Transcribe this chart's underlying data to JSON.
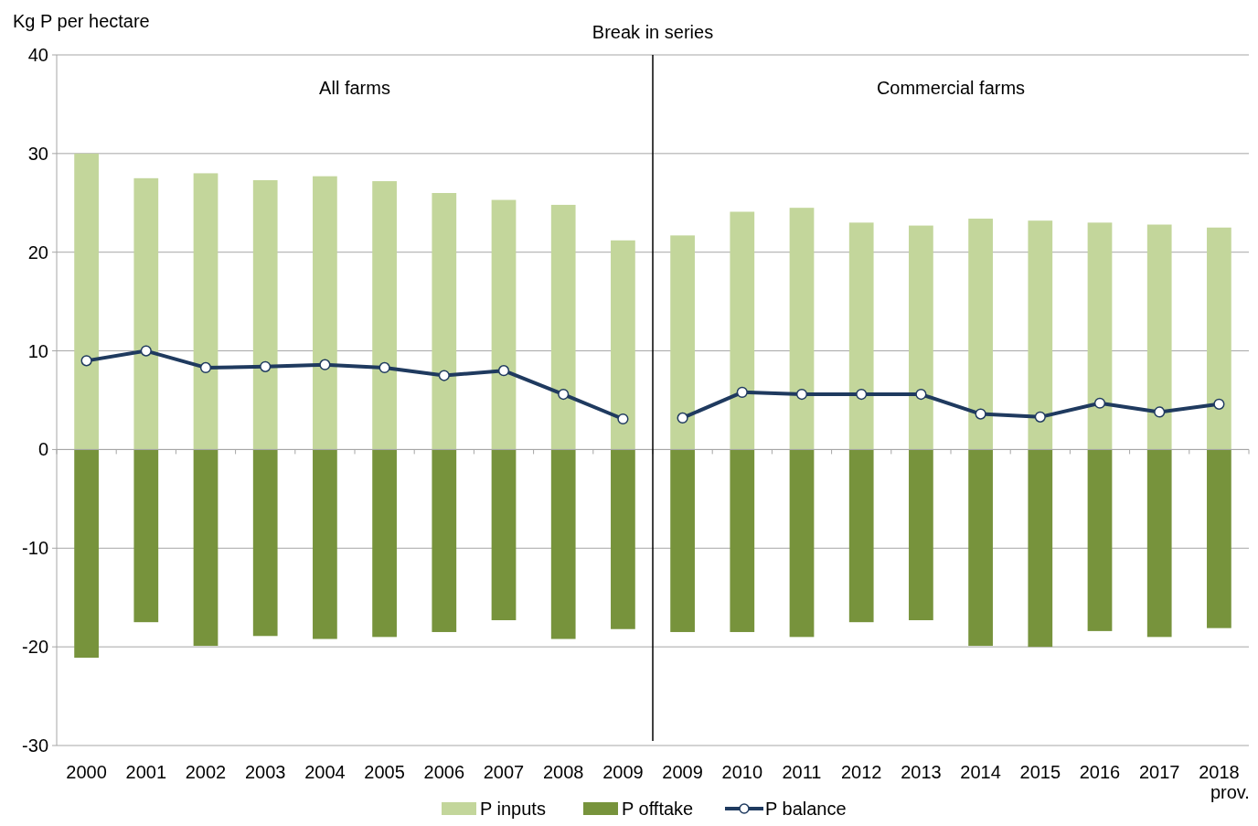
{
  "chart_data": {
    "type": "bar",
    "ylabel": "Kg P per hectare",
    "categories": [
      "2000",
      "2001",
      "2002",
      "2003",
      "2004",
      "2005",
      "2006",
      "2007",
      "2008",
      "2009",
      "2009",
      "2010",
      "2011",
      "2012",
      "2013",
      "2014",
      "2015",
      "2016",
      "2017",
      "2018\nprov."
    ],
    "series": [
      {
        "name": "P inputs",
        "color": "#c3d69b",
        "values": [
          30.0,
          27.5,
          28.0,
          27.3,
          27.7,
          27.2,
          26.0,
          25.3,
          24.8,
          21.2,
          21.7,
          24.1,
          24.5,
          23.0,
          22.7,
          23.4,
          23.2,
          23.0,
          22.8,
          22.5
        ]
      },
      {
        "name": "P offtake",
        "color": "#77933c",
        "values": [
          -21.1,
          -17.5,
          -19.9,
          -18.9,
          -19.2,
          -19.0,
          -18.5,
          -17.3,
          -19.2,
          -18.2,
          -18.5,
          -18.5,
          -19.0,
          -17.5,
          -17.3,
          -19.9,
          -20.0,
          -18.4,
          -19.0,
          -18.1
        ]
      },
      {
        "name": "P balance",
        "type": "line",
        "color": "#1f3a5f",
        "marker": "circle",
        "values": [
          9.0,
          10.0,
          8.3,
          8.4,
          8.6,
          8.3,
          7.5,
          8.0,
          5.6,
          3.1,
          3.2,
          5.8,
          5.6,
          5.6,
          5.6,
          3.6,
          3.3,
          4.7,
          3.8,
          4.6
        ]
      }
    ],
    "ylim": [
      -30,
      40
    ],
    "yticks": [
      -30,
      -20,
      -10,
      0,
      10,
      20,
      30,
      40
    ],
    "grid": "y",
    "legend": "bottom",
    "stacked": true,
    "ref_lines": [
      {
        "axis": "x",
        "value": "2009",
        "label": "Break in series",
        "color": "#000000"
      }
    ],
    "annotations": [
      "All farms",
      "Commercial farms"
    ]
  }
}
